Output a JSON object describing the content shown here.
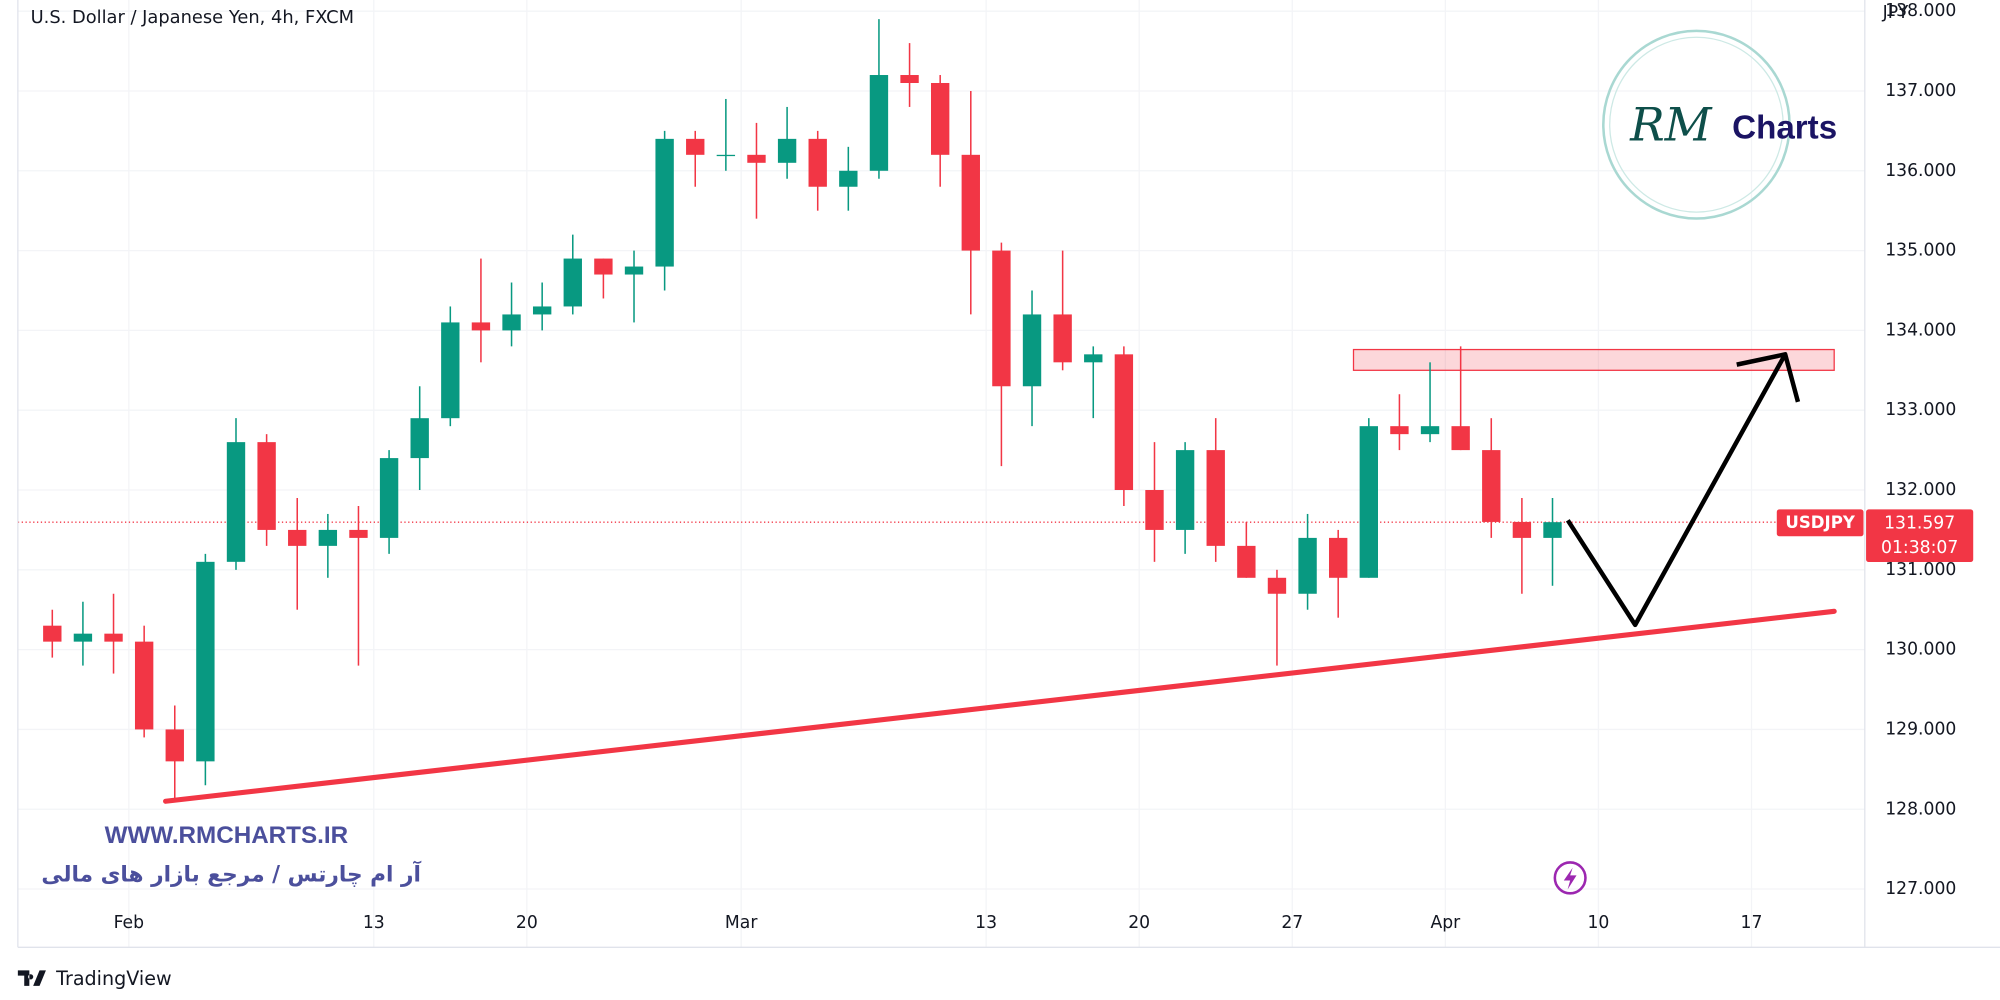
{
  "chart_data": {
    "type": "candlestick",
    "title": "U.S. Dollar / Japanese Yen, 4h, FXCM",
    "currency": "JPY",
    "symbol": "USDJPY",
    "last_price": 131.597,
    "countdown": "01:38:07",
    "watermark": "WWW.RMCHARTS.IR",
    "watermark_subtitle": "آر ام چارتس / مرجع بازار های مالی",
    "logo_initials": "RM",
    "logo_text": "Charts",
    "footer": "TradingView",
    "up_color": "#089981",
    "down_color": "#f23645",
    "xlim": [
      -3.625,
      56.7
    ],
    "ylim": [
      126.27,
      138.14
    ],
    "xticks": [
      {
        "value": 0,
        "label": "Feb"
      },
      {
        "value": 8,
        "label": "13"
      },
      {
        "value": 13,
        "label": "20"
      },
      {
        "value": 20,
        "label": "Mar"
      },
      {
        "value": 28,
        "label": "13"
      },
      {
        "value": 33,
        "label": "20"
      },
      {
        "value": 38,
        "label": "27"
      },
      {
        "value": 43,
        "label": "Apr"
      },
      {
        "value": 48,
        "label": "10"
      },
      {
        "value": 53,
        "label": "17"
      }
    ],
    "yticks": [
      {
        "value": 127,
        "label": "127.000"
      },
      {
        "value": 128,
        "label": "128.000"
      },
      {
        "value": 129,
        "label": "129.000"
      },
      {
        "value": 130,
        "label": "130.000"
      },
      {
        "value": 131,
        "label": "131.000"
      },
      {
        "value": 132,
        "label": "132.000"
      },
      {
        "value": 133,
        "label": "133.000"
      },
      {
        "value": 134,
        "label": "134.000"
      },
      {
        "value": 135,
        "label": "135.000"
      },
      {
        "value": 136,
        "label": "136.000"
      },
      {
        "value": 137,
        "label": "137.000"
      },
      {
        "value": 138,
        "label": "138.000"
      }
    ],
    "x": [
      -3,
      -2,
      -1,
      0,
      1,
      2,
      3,
      4,
      5,
      6,
      7,
      8,
      9,
      10,
      11,
      12,
      13,
      14,
      15,
      16,
      17,
      18,
      19,
      20,
      21,
      22,
      23,
      24,
      25,
      26,
      27,
      28,
      29,
      30,
      31,
      32,
      33,
      34,
      35,
      36,
      37,
      38,
      39,
      40,
      41,
      42,
      43,
      44,
      45,
      46
    ],
    "open": [
      130.3,
      130.1,
      130.2,
      130.1,
      129.0,
      128.6,
      131.1,
      132.6,
      131.5,
      131.3,
      131.5,
      131.4,
      132.4,
      132.9,
      134.1,
      134.0,
      134.2,
      134.3,
      134.9,
      134.7,
      134.8,
      136.4,
      136.2,
      136.2,
      136.1,
      136.4,
      135.8,
      136.0,
      137.2,
      137.1,
      136.2,
      135.0,
      133.3,
      134.2,
      133.6,
      133.7,
      132.0,
      131.5,
      132.5,
      131.3,
      130.9,
      130.7,
      131.4,
      130.9,
      132.8,
      132.7,
      132.8,
      132.5,
      131.6,
      131.4
    ],
    "high": [
      130.5,
      130.6,
      130.7,
      130.3,
      129.3,
      131.2,
      132.9,
      132.7,
      131.9,
      131.7,
      131.8,
      132.5,
      133.3,
      134.3,
      134.9,
      134.6,
      134.6,
      135.2,
      134.9,
      135.0,
      136.5,
      136.5,
      136.9,
      136.6,
      136.8,
      136.5,
      136.3,
      137.9,
      137.6,
      137.2,
      137.0,
      135.1,
      134.5,
      135.0,
      133.8,
      133.8,
      132.6,
      132.6,
      132.9,
      131.6,
      131.0,
      131.7,
      131.5,
      132.9,
      133.2,
      133.6,
      133.8,
      132.9,
      131.9,
      131.9
    ],
    "low": [
      129.9,
      129.8,
      129.7,
      128.9,
      128.1,
      128.3,
      131.0,
      131.3,
      130.5,
      130.9,
      129.8,
      131.2,
      132.0,
      132.8,
      133.6,
      133.8,
      134.0,
      134.2,
      134.4,
      134.1,
      134.5,
      135.8,
      136.0,
      135.4,
      135.9,
      135.5,
      135.5,
      135.9,
      136.8,
      135.8,
      134.2,
      132.3,
      132.8,
      133.5,
      132.9,
      131.8,
      131.1,
      131.2,
      131.1,
      130.9,
      129.8,
      130.5,
      130.4,
      130.9,
      132.5,
      132.6,
      132.5,
      131.4,
      130.7,
      130.8
    ],
    "close": [
      130.1,
      130.2,
      130.1,
      129.0,
      128.6,
      131.1,
      132.6,
      131.5,
      131.3,
      131.5,
      131.4,
      132.4,
      132.9,
      134.1,
      134.0,
      134.2,
      134.3,
      134.9,
      134.7,
      134.8,
      136.4,
      136.2,
      136.2,
      136.1,
      136.4,
      135.8,
      136.0,
      137.2,
      137.1,
      136.2,
      135.0,
      133.3,
      134.2,
      133.6,
      133.7,
      132.0,
      131.5,
      132.5,
      131.3,
      130.9,
      130.7,
      131.4,
      130.9,
      132.8,
      132.7,
      132.8,
      132.5,
      131.6,
      131.4,
      131.597
    ],
    "trendline": {
      "color": "#f23645",
      "x": [
        1.2,
        55.7
      ],
      "y": [
        128.1,
        130.48
      ]
    },
    "zone": {
      "color": "#f23645",
      "x": [
        40,
        55.7
      ],
      "y": [
        133.5,
        133.76
      ]
    },
    "projection": {
      "color": "#000000",
      "x": [
        47,
        49.2,
        54.1
      ],
      "y": [
        131.62,
        130.31,
        133.7
      ]
    }
  }
}
